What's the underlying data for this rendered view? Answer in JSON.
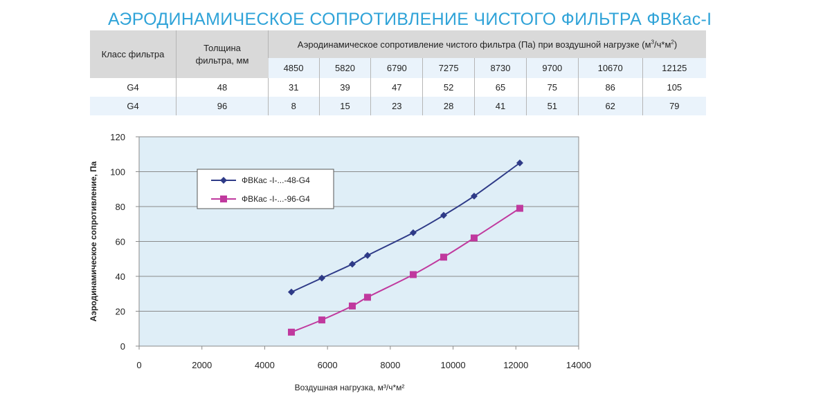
{
  "page_title": "АЭРОДИНАМИЧЕСКОЕ СОПРОТИВЛЕНИЕ ЧИСТОГО ФИЛЬТРА ФВКас-I",
  "table": {
    "col_class": "Класс фильтра",
    "col_thickness": "Толщина фильтра, мм",
    "col_resistance": "Аэродинамическое сопротивление чистого фильтра (Па) при воздушной нагрузке (м³/ч*м²)",
    "loads": [
      "4850",
      "5820",
      "6790",
      "7275",
      "8730",
      "9700",
      "10670",
      "12125"
    ],
    "rows": [
      {
        "class": "G4",
        "thickness": "48",
        "values": [
          "31",
          "39",
          "47",
          "52",
          "65",
          "75",
          "86",
          "105"
        ]
      },
      {
        "class": "G4",
        "thickness": "96",
        "values": [
          "8",
          "15",
          "23",
          "28",
          "41",
          "51",
          "62",
          "79"
        ]
      }
    ]
  },
  "chart_data": {
    "type": "line",
    "title": "",
    "xlabel": "Воздушная нагрузка, м³/ч*м²",
    "ylabel": "Аэродинамическое сопротивление, Па",
    "xlim": [
      0,
      14000
    ],
    "ylim": [
      0,
      120
    ],
    "x_ticks": [
      "0",
      "2000",
      "4000",
      "6000",
      "8000",
      "10000",
      "12000",
      "14000"
    ],
    "y_ticks": [
      "0",
      "20",
      "40",
      "60",
      "80",
      "100",
      "120"
    ],
    "grid": "horizontal",
    "legend_position": "upper-left",
    "background": "#dfeef7",
    "series": [
      {
        "name": "ФВКас -I-...-48-G4",
        "color": "#2e3a87",
        "marker": "diamond",
        "x": [
          4850,
          5820,
          6790,
          7275,
          8730,
          9700,
          10670,
          12125
        ],
        "y": [
          31,
          39,
          47,
          52,
          65,
          75,
          86,
          105
        ]
      },
      {
        "name": "ФВКас -I-...-96-G4",
        "color": "#c0399e",
        "marker": "square",
        "x": [
          4850,
          5820,
          6790,
          7275,
          8730,
          9700,
          10670,
          12125
        ],
        "y": [
          8,
          15,
          23,
          28,
          41,
          51,
          62,
          79
        ]
      }
    ]
  }
}
